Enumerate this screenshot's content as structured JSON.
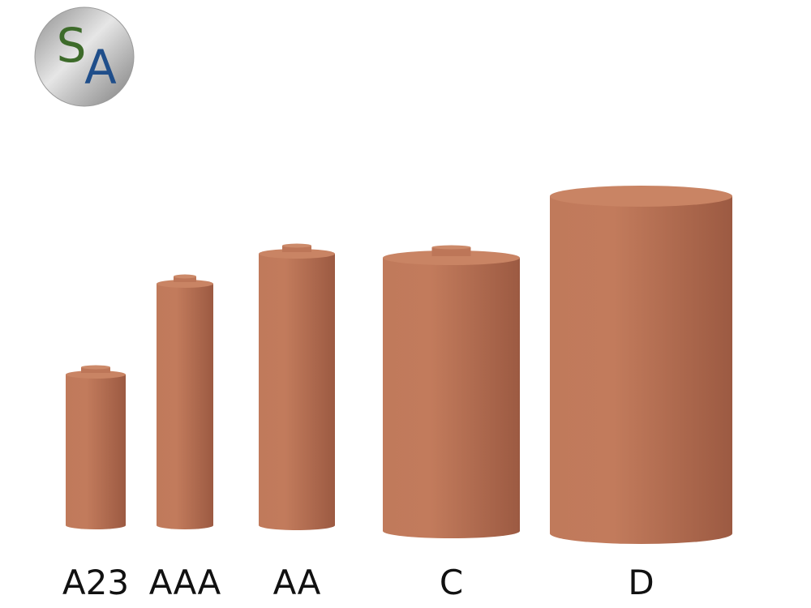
{
  "logo": {
    "letters": [
      "S",
      "A"
    ]
  },
  "batteries": [
    {
      "label": "A23"
    },
    {
      "label": "AAA"
    },
    {
      "label": "AA"
    },
    {
      "label": "C"
    },
    {
      "label": "D"
    }
  ]
}
